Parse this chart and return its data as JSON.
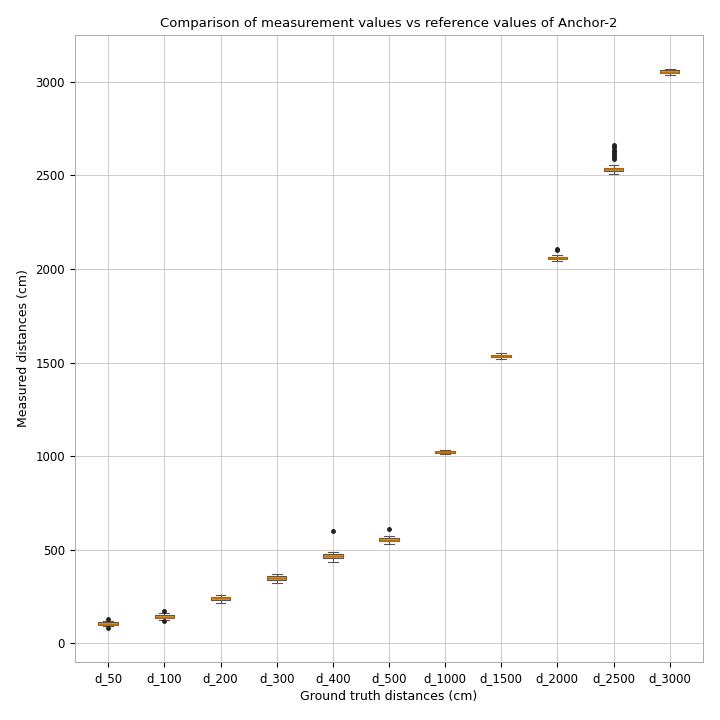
{
  "title": "Comparison of measurement values vs reference values of Anchor-2",
  "xlabel": "Ground truth distances (cm)",
  "ylabel": "Measured distances (cm)",
  "categories": [
    "d_50",
    "d_100",
    "d_200",
    "d_300",
    "d_400",
    "d_500",
    "d_1000",
    "d_1500",
    "d_2000",
    "d_2500",
    "d_3000"
  ],
  "box_data": {
    "d_50": {
      "median": 105,
      "q1": 98,
      "q3": 113,
      "whislo": 90,
      "whishi": 120,
      "fliers": [
        82,
        128
      ]
    },
    "d_100": {
      "median": 143,
      "q1": 135,
      "q3": 153,
      "whislo": 125,
      "whishi": 163,
      "fliers": [
        118,
        172
      ]
    },
    "d_200": {
      "median": 240,
      "q1": 230,
      "q3": 250,
      "whislo": 218,
      "whishi": 260,
      "fliers": []
    },
    "d_300": {
      "median": 350,
      "q1": 337,
      "q3": 360,
      "whislo": 323,
      "whishi": 372,
      "fliers": []
    },
    "d_400": {
      "median": 468,
      "q1": 455,
      "q3": 478,
      "whislo": 437,
      "whishi": 490,
      "fliers": [
        600
      ]
    },
    "d_500": {
      "median": 553,
      "q1": 545,
      "q3": 563,
      "whislo": 532,
      "whishi": 574,
      "fliers": [
        610
      ]
    },
    "d_1000": {
      "median": 1022,
      "q1": 1018,
      "q3": 1026,
      "whislo": 1012,
      "whishi": 1032,
      "fliers": []
    },
    "d_1500": {
      "median": 1535,
      "q1": 1530,
      "q3": 1543,
      "whislo": 1520,
      "whishi": 1552,
      "fliers": []
    },
    "d_2000": {
      "median": 2058,
      "q1": 2052,
      "q3": 2066,
      "whislo": 2042,
      "whishi": 2075,
      "fliers": [
        2100,
        2108
      ]
    },
    "d_2500": {
      "median": 2532,
      "q1": 2525,
      "q3": 2542,
      "whislo": 2510,
      "whishi": 2555,
      "fliers": [
        2590,
        2600,
        2610,
        2618,
        2628,
        2638,
        2650,
        2660
      ]
    },
    "d_3000": {
      "median": 3055,
      "q1": 3048,
      "q3": 3062,
      "whislo": 3038,
      "whishi": 3068,
      "fliers": []
    }
  },
  "box_facecolor": "#f0f0f0",
  "box_edgecolor": "#555555",
  "median_color": "#c87000",
  "whisker_color": "#555555",
  "cap_color": "#555555",
  "flier_color": "#222222",
  "background_color": "#ffffff",
  "grid_color": "#cccccc",
  "ylim": [
    -100,
    3250
  ],
  "yticks": [
    0,
    500,
    1000,
    1500,
    2000,
    2500,
    3000
  ],
  "box_width": 0.35,
  "figsize": [
    7.2,
    7.2
  ],
  "dpi": 100
}
